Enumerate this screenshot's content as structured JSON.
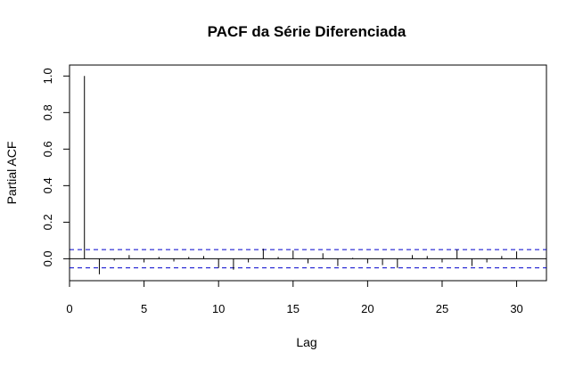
{
  "chart_data": {
    "type": "bar",
    "title": "PACF da Série Diferenciada",
    "xlabel": "Lag",
    "ylabel": "Partial ACF",
    "xlim": [
      0,
      32
    ],
    "ylim": [
      -0.12,
      1.06
    ],
    "xticks": [
      "0",
      "5",
      "10",
      "15",
      "20",
      "25",
      "30"
    ],
    "yticks": [
      "0.0",
      "0.2",
      "0.4",
      "0.6",
      "0.8",
      "1.0"
    ],
    "confidence_bound": 0.05,
    "lags": [
      1,
      2,
      3,
      4,
      5,
      6,
      7,
      8,
      9,
      10,
      11,
      12,
      13,
      14,
      15,
      16,
      17,
      18,
      19,
      20,
      21,
      22,
      23,
      24,
      25,
      26,
      27,
      28,
      29,
      30
    ],
    "values": [
      1.0,
      -0.085,
      -0.01,
      0.02,
      -0.02,
      0.01,
      -0.015,
      0.01,
      0.015,
      -0.05,
      -0.06,
      -0.02,
      0.055,
      0.01,
      0.045,
      -0.025,
      0.03,
      -0.04,
      0.005,
      -0.025,
      -0.035,
      -0.05,
      0.02,
      0.015,
      -0.02,
      0.05,
      -0.04,
      -0.02,
      0.015,
      0.04
    ],
    "colors": {
      "bars": "#000000",
      "bounds": "#0000cc",
      "zero_line": "#000000"
    },
    "grid": false
  }
}
